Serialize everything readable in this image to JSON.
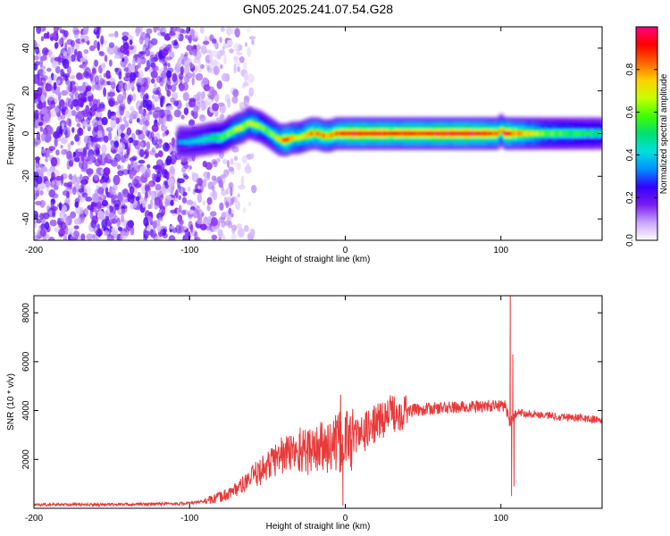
{
  "chart_data": [
    {
      "type": "heatmap",
      "title": "GN05.2025.241.07.54.G28",
      "xlabel": "Height of straight line (km)",
      "ylabel": "Frequency (Hz)",
      "xlim": [
        -200,
        165
      ],
      "ylim": [
        -50,
        50
      ],
      "xticks": [
        -200,
        -100,
        0,
        100
      ],
      "xtick_labels": [
        "-200",
        "-100",
        "0",
        "100"
      ],
      "yticks": [
        -40,
        -20,
        0,
        20,
        40
      ],
      "ytick_labels": [
        "-40",
        "-20",
        "0",
        "20",
        "40"
      ],
      "colorbar": {
        "label": "Normalized spectral amplitude",
        "range": [
          0,
          1
        ],
        "ticks": [
          0.0,
          0.2,
          0.4,
          0.6,
          0.8
        ],
        "tick_labels": [
          "0.0",
          "0.2",
          "0.4",
          "0.6",
          "0.8"
        ],
        "colors": [
          "#ffffff",
          "#c8a6ff",
          "#7a1cf0",
          "#3300ff",
          "#0090ff",
          "#00e0e0",
          "#00e070",
          "#40ff00",
          "#c8ff00",
          "#ffd000",
          "#ff6000",
          "#ff0000",
          "#ff0080"
        ]
      },
      "ridge": {
        "x": [
          -108,
          -100,
          -92,
          -85,
          -80,
          -75,
          -70,
          -66,
          -62,
          -58,
          -54,
          -50,
          -46,
          -42,
          -38,
          -34,
          -30,
          -26,
          -22,
          -18,
          -14,
          -10,
          -6,
          -2,
          2,
          10,
          30,
          60,
          90,
          98,
          100,
          102,
          104,
          108,
          130,
          165
        ],
        "freq": [
          -4,
          -4,
          -3,
          -2,
          -2,
          0,
          2,
          3,
          5,
          4,
          3,
          1,
          -1,
          -3,
          -3,
          -2,
          -2,
          -1,
          0,
          0,
          -1,
          -1,
          0,
          0,
          0,
          0,
          0,
          0,
          0,
          0,
          2,
          0,
          0,
          0,
          0,
          0
        ],
        "amplitude": [
          0.35,
          0.4,
          0.45,
          0.5,
          0.55,
          0.6,
          0.65,
          0.7,
          0.65,
          0.7,
          0.6,
          0.6,
          0.65,
          0.75,
          0.9,
          0.75,
          0.7,
          0.75,
          0.85,
          0.8,
          0.85,
          0.8,
          0.85,
          0.9,
          0.95,
          0.95,
          0.92,
          0.95,
          0.95,
          0.85,
          0.7,
          0.85,
          0.95,
          0.85,
          0.6,
          0.5
        ]
      }
    },
    {
      "type": "line",
      "xlabel": "Height of straight line (km)",
      "ylabel": "SNR (10 * v/v)",
      "xlim": [
        -200,
        165
      ],
      "ylim": [
        0,
        8700
      ],
      "xticks": [
        -200,
        -100,
        0,
        100
      ],
      "xtick_labels": [
        "-200",
        "-100",
        "0",
        "100"
      ],
      "yticks": [
        2000,
        4000,
        6000,
        8000
      ],
      "ytick_labels": [
        "2000",
        "4000",
        "6000",
        "8000"
      ],
      "series": [
        {
          "name": "SNR",
          "color": "#e83a3a",
          "x": [
            -200,
            -150,
            -100,
            -85,
            -75,
            -65,
            -55,
            -45,
            -35,
            -28,
            -20,
            -12,
            -5,
            0,
            10,
            20,
            30,
            40,
            60,
            80,
            100,
            103,
            106,
            108,
            110,
            115,
            130,
            150,
            165
          ],
          "values": [
            150,
            150,
            200,
            350,
            600,
            1000,
            1500,
            2000,
            2300,
            2300,
            2400,
            2500,
            2600,
            2800,
            3000,
            3500,
            3900,
            4000,
            4100,
            4150,
            4200,
            4200,
            3500,
            3600,
            3900,
            3900,
            3800,
            3700,
            3600
          ],
          "spikes": [
            {
              "x": -41,
              "value": 2900
            },
            {
              "x": -29,
              "value": 3300
            },
            {
              "x": -20,
              "value": 2950
            },
            {
              "x": -7,
              "value": 3300
            },
            {
              "x": -3,
              "value": 4650
            },
            {
              "x": -1.5,
              "value": 100
            },
            {
              "x": 106,
              "value": 8700
            },
            {
              "x": 106.8,
              "value": 500
            },
            {
              "x": 107.6,
              "value": 6300
            },
            {
              "x": 108.4,
              "value": 900
            }
          ]
        }
      ]
    }
  ]
}
